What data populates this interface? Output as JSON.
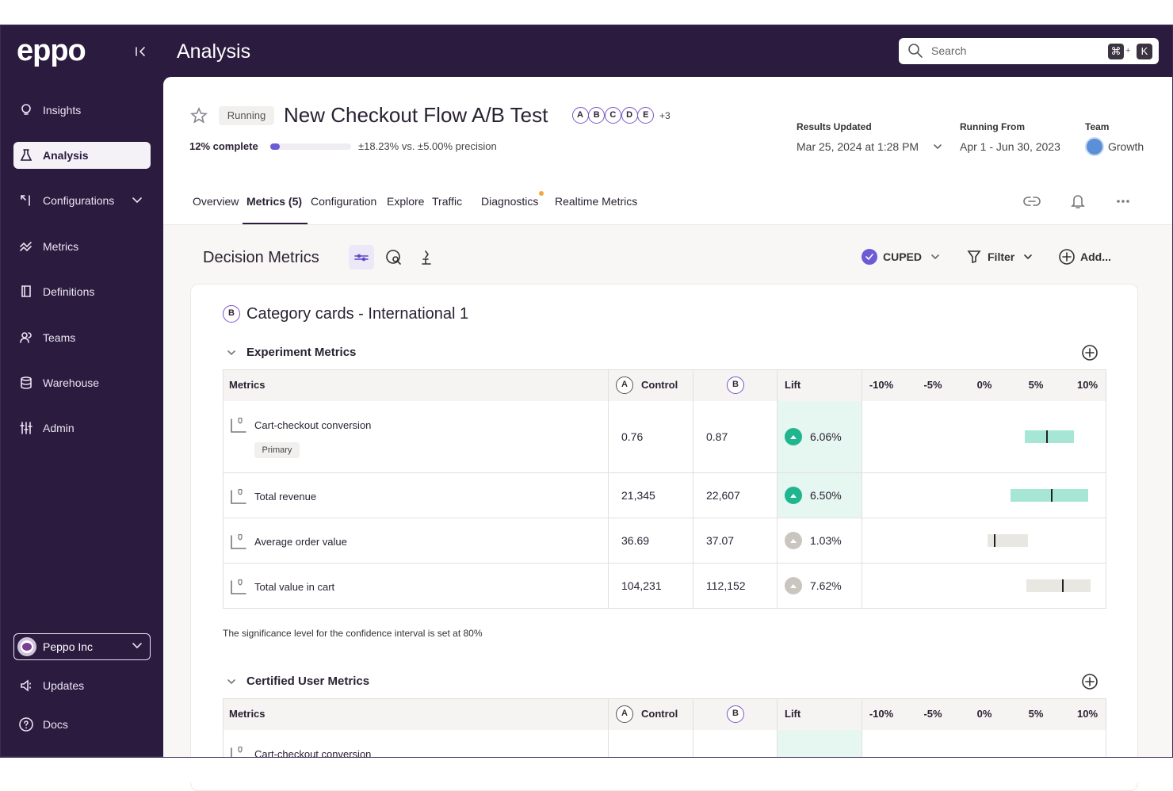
{
  "sidebar": {
    "logo": "eppo",
    "nav": [
      "Insights",
      "Analysis",
      "Configurations",
      "Metrics",
      "Definitions",
      "Teams",
      "Warehouse",
      "Admin"
    ],
    "active": 1,
    "org": "Peppo Inc",
    "footer": [
      "Updates",
      "Docs"
    ]
  },
  "header": {
    "title": "Analysis",
    "search": "Search",
    "shortcut": [
      "⌘",
      "+",
      "K"
    ]
  },
  "experiment": {
    "status": "Running",
    "name": "New Checkout Flow A/B Test",
    "variants": [
      "A",
      "B",
      "C",
      "D",
      "E"
    ],
    "more": "+3",
    "progress": {
      "label": "12% complete",
      "value": 12
    },
    "precision": "±18.23% vs. ±5.00% precision",
    "results_updated": {
      "label": "Results Updated",
      "value": "Mar 25, 2024 at 1:28 PM"
    },
    "running_from": {
      "label": "Running From",
      "value": "Apr 1 - Jun 30, 2023"
    },
    "team": {
      "label": "Team",
      "value": "Growth"
    }
  },
  "tabs": [
    "Overview",
    "Metrics (5)",
    "Configuration",
    "Explore",
    "Traffic",
    "Diagnostics",
    "Realtime Metrics"
  ],
  "active_tab": 1,
  "toolbar": {
    "title": "Decision Metrics",
    "cuped": "CUPED",
    "filter": "Filter",
    "add": "Add..."
  },
  "card": {
    "variant": "B",
    "title": "Category cards - International 1",
    "sections": [
      {
        "title": "Experiment Metrics",
        "columns": {
          "metrics": "Metrics",
          "control_badge": "A",
          "control": "Control",
          "treatment_badge": "B",
          "lift": "Lift"
        },
        "xlim": [
          -10,
          10
        ],
        "xticks": [
          {
            "value": -10,
            "label": "-10%"
          },
          {
            "value": -5,
            "label": "-5%"
          },
          {
            "value": 0,
            "label": "0%"
          },
          {
            "value": 5,
            "label": "5%"
          },
          {
            "value": 10,
            "label": "10%"
          }
        ],
        "rows": [
          {
            "metric": "Cart-checkout conversion",
            "tag": "Primary",
            "control": "0.76",
            "treatment": "0.87",
            "lift": {
              "value": 6.06,
              "label": "6.06%"
            },
            "ci": [
              3.9,
              8.7
            ],
            "highlight": true,
            "color": "#a6e6d5",
            "dot_color": "#1fb58f"
          },
          {
            "metric": "Total revenue",
            "control": "21,345",
            "treatment": "22,607",
            "lift": {
              "value": 6.5,
              "label": "6.50%"
            },
            "ci": [
              2.5,
              10.1
            ],
            "highlight": true,
            "color": "#a6e6d5",
            "dot_color": "#1fb58f"
          },
          {
            "metric": "Average order value",
            "control": "36.69",
            "treatment": "37.07",
            "lift": {
              "value": 1.03,
              "label": "1.03%"
            },
            "ci": [
              0.3,
              4.2
            ],
            "highlight": false,
            "color": "#e9e7e2",
            "dot_color": "#c9c6c0"
          },
          {
            "metric": "Total value in cart",
            "control": "104,231",
            "treatment": "112,152",
            "lift": {
              "value": 7.62,
              "label": "7.62%"
            },
            "ci": [
              4.1,
              10.3
            ],
            "highlight": false,
            "color": "#e9e7e2",
            "dot_color": "#c9c6c0"
          }
        ],
        "note": "The significance level for the confidence interval is set at 80%"
      },
      {
        "title": "Certified User Metrics",
        "columns": {
          "metrics": "Metrics",
          "control_badge": "A",
          "control": "Control",
          "treatment_badge": "B",
          "lift": "Lift"
        },
        "xlim": [
          -10,
          10
        ],
        "xticks": [
          {
            "value": -10,
            "label": "-10%"
          },
          {
            "value": -5,
            "label": "-5%"
          },
          {
            "value": 0,
            "label": "0%"
          },
          {
            "value": 5,
            "label": "5%"
          },
          {
            "value": 10,
            "label": "10%"
          }
        ],
        "rows": [
          {
            "metric": "Cart-checkout conversion",
            "highlight": true
          }
        ]
      }
    ]
  }
}
